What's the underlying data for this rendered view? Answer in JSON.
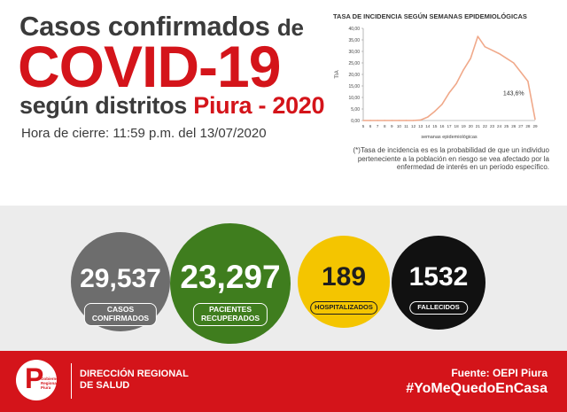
{
  "header": {
    "line1": "Casos confirmados",
    "line1_de": "de",
    "main": "COVID-19",
    "line3_prefix": "según distritos",
    "line3_city": "Piura - 2020",
    "closing": "Hora de cierre: 11:59 p.m. del 13/07/2020"
  },
  "chart_title": "TASA DE INCIDENCIA SEGÚN SEMANAS EPIDEMIOLÓGICAS",
  "chart_data": {
    "type": "line",
    "title": "TASA DE INCIDENCIA SEGÚN SEMANAS EPIDEMIOLÓGICAS",
    "xlabel": "semanas epidemiológicas",
    "ylabel": "TIA",
    "x": [
      5,
      6,
      7,
      8,
      9,
      10,
      11,
      12,
      13,
      14,
      15,
      16,
      17,
      18,
      19,
      20,
      21,
      22,
      23,
      24,
      25,
      26,
      27,
      28,
      29
    ],
    "y": [
      0,
      0,
      0,
      0,
      0,
      0,
      0,
      0,
      0.2,
      1.5,
      4,
      7,
      12,
      16,
      22,
      27,
      36.5,
      32,
      30.5,
      29,
      27,
      25,
      21,
      17,
      0.5
    ],
    "yticks": [
      "0,00",
      "5,00",
      "10,00",
      "15,00",
      "20,00",
      "25,00",
      "30,00",
      "35,00",
      "40,00"
    ],
    "ylim": [
      0,
      40
    ],
    "annotation": "143,6%",
    "color": "#f0a98a"
  },
  "note": "(*)Tasa de incidencia es es la probabilidad de que un individuo perteneciente a la población en riesgo se vea afectado por la enfermedad de interés en un período específico.",
  "stats": {
    "confirmed": {
      "value": "29,537",
      "label_1": "CASOS",
      "label_2": "CONFIRMADOS",
      "color": "#6d6d6d"
    },
    "recovered": {
      "value": "23,297",
      "label_1": "PACIENTES",
      "label_2": "RECUPERADOS",
      "color": "#3f7d1e"
    },
    "hospitalized": {
      "value": "189",
      "label": "HOSPITALIZADOS",
      "color": "#f4c500"
    },
    "deceased": {
      "value": "1532",
      "label": "FALLECIDOS",
      "color": "#111111"
    }
  },
  "footer": {
    "logo_text_1": "Gobierno",
    "logo_text_2": "Regional",
    "logo_text_3": "Piura",
    "org_line_1": "DIRECCIÓN REGIONAL",
    "org_line_2": "DE SALUD",
    "source": "Fuente: OEPI Piura",
    "hashtag": "#YoMeQuedoEnCasa",
    "brand_color": "#d4141a"
  }
}
